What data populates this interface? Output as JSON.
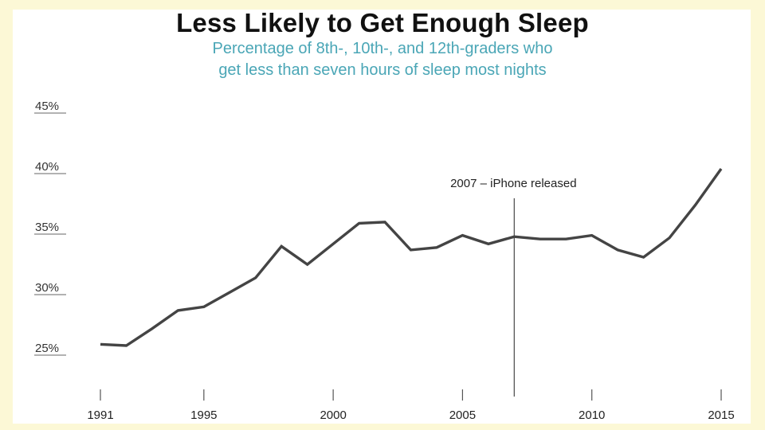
{
  "chart_data": {
    "type": "line",
    "title": "Less Likely to Get Enough Sleep",
    "subtitle_line1": "Percentage of 8th-, 10th-, and 12th-graders who",
    "subtitle_line2": "get less than seven hours of sleep most nights",
    "xlabel": "",
    "ylabel": "",
    "x": [
      1991,
      1992,
      1993,
      1994,
      1995,
      1996,
      1997,
      1998,
      1999,
      2000,
      2001,
      2002,
      2003,
      2004,
      2005,
      2006,
      2007,
      2008,
      2009,
      2010,
      2011,
      2012,
      2013,
      2014,
      2015
    ],
    "series": [
      {
        "values": [
          25.3,
          25.2,
          26.6,
          28.1,
          28.4,
          29.6,
          30.8,
          33.4,
          31.9,
          33.6,
          35.3,
          35.4,
          33.1,
          33.3,
          34.3,
          33.6,
          34.2,
          34.0,
          34.0,
          34.3,
          33.1,
          32.5,
          34.1,
          36.8,
          39.8
        ]
      }
    ],
    "xlim": [
      1991,
      2015
    ],
    "ylim": [
      20,
      45
    ],
    "x_ticks": [
      1991,
      1995,
      2000,
      2005,
      2010,
      2015
    ],
    "x_tick_labels": [
      "1991",
      "1995",
      "2000",
      "2005",
      "2010",
      "2015"
    ],
    "y_ticks": [
      25,
      30,
      35,
      40,
      45
    ],
    "y_tick_labels": [
      "25%",
      "30%",
      "35%",
      "40%",
      "45%"
    ],
    "grid": false,
    "annotations": [
      {
        "x": 2007,
        "text": "2007 – iPhone released"
      }
    ],
    "colors": {
      "line": "#444444",
      "title": "#111111",
      "subtitle": "#4aa6b6",
      "background": "#fcf8d6"
    }
  }
}
